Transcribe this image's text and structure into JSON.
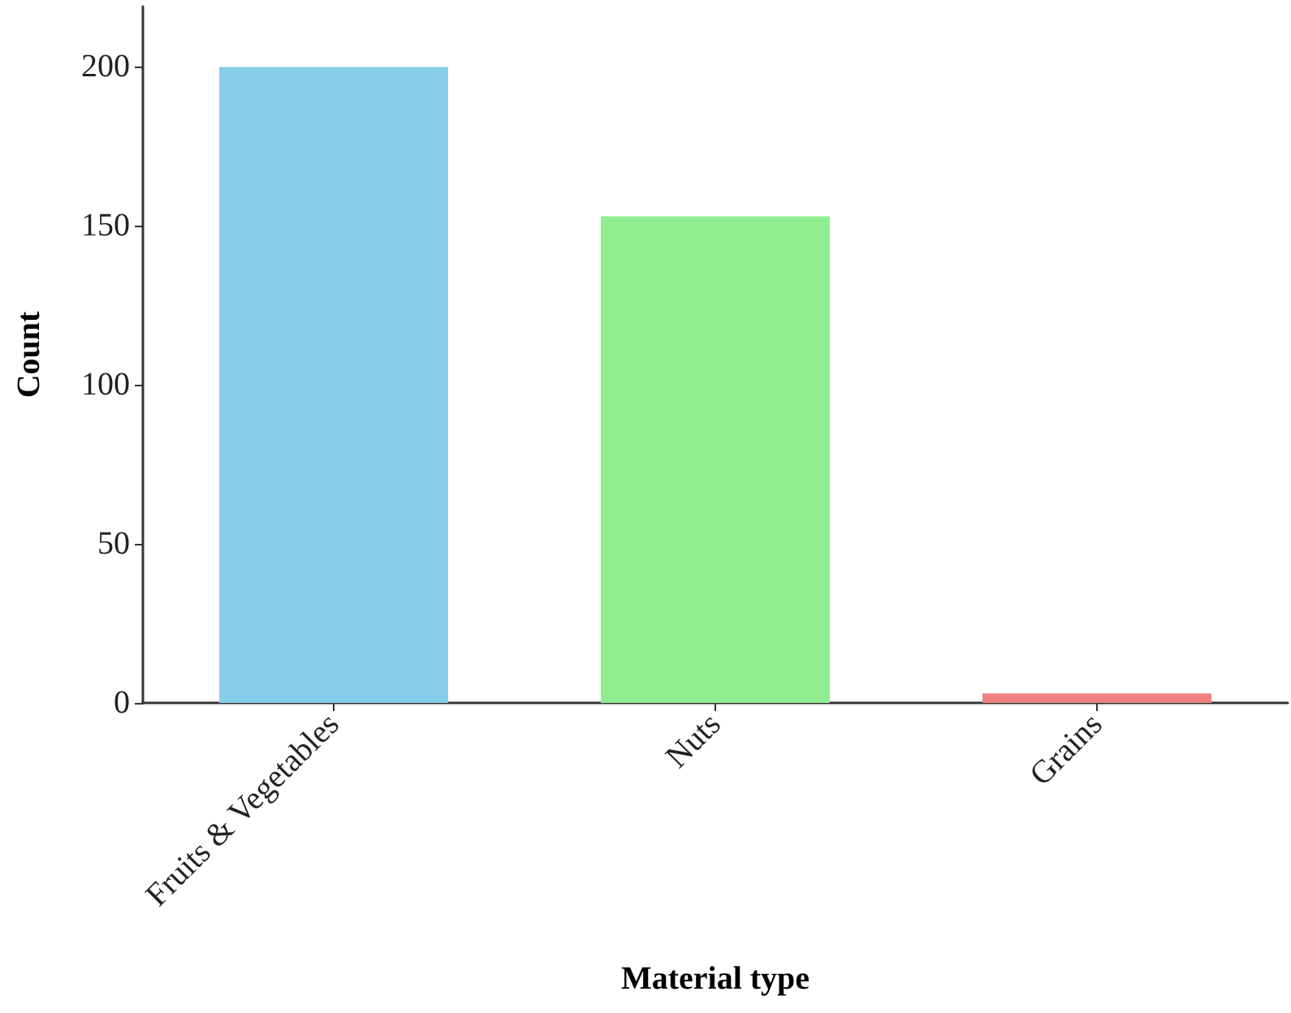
{
  "chart_data": {
    "type": "bar",
    "xlabel": "Material type",
    "ylabel": "Count",
    "categories": [
      "Fruits & Vegetables",
      "Nuts",
      "Grains"
    ],
    "values": [
      200,
      153,
      3
    ],
    "colors": [
      "#87ceeb",
      "#90ee90",
      "#f08080"
    ],
    "ylim": [
      0,
      219
    ],
    "yticks": [
      0,
      50,
      100,
      150,
      200
    ],
    "grid": false
  }
}
